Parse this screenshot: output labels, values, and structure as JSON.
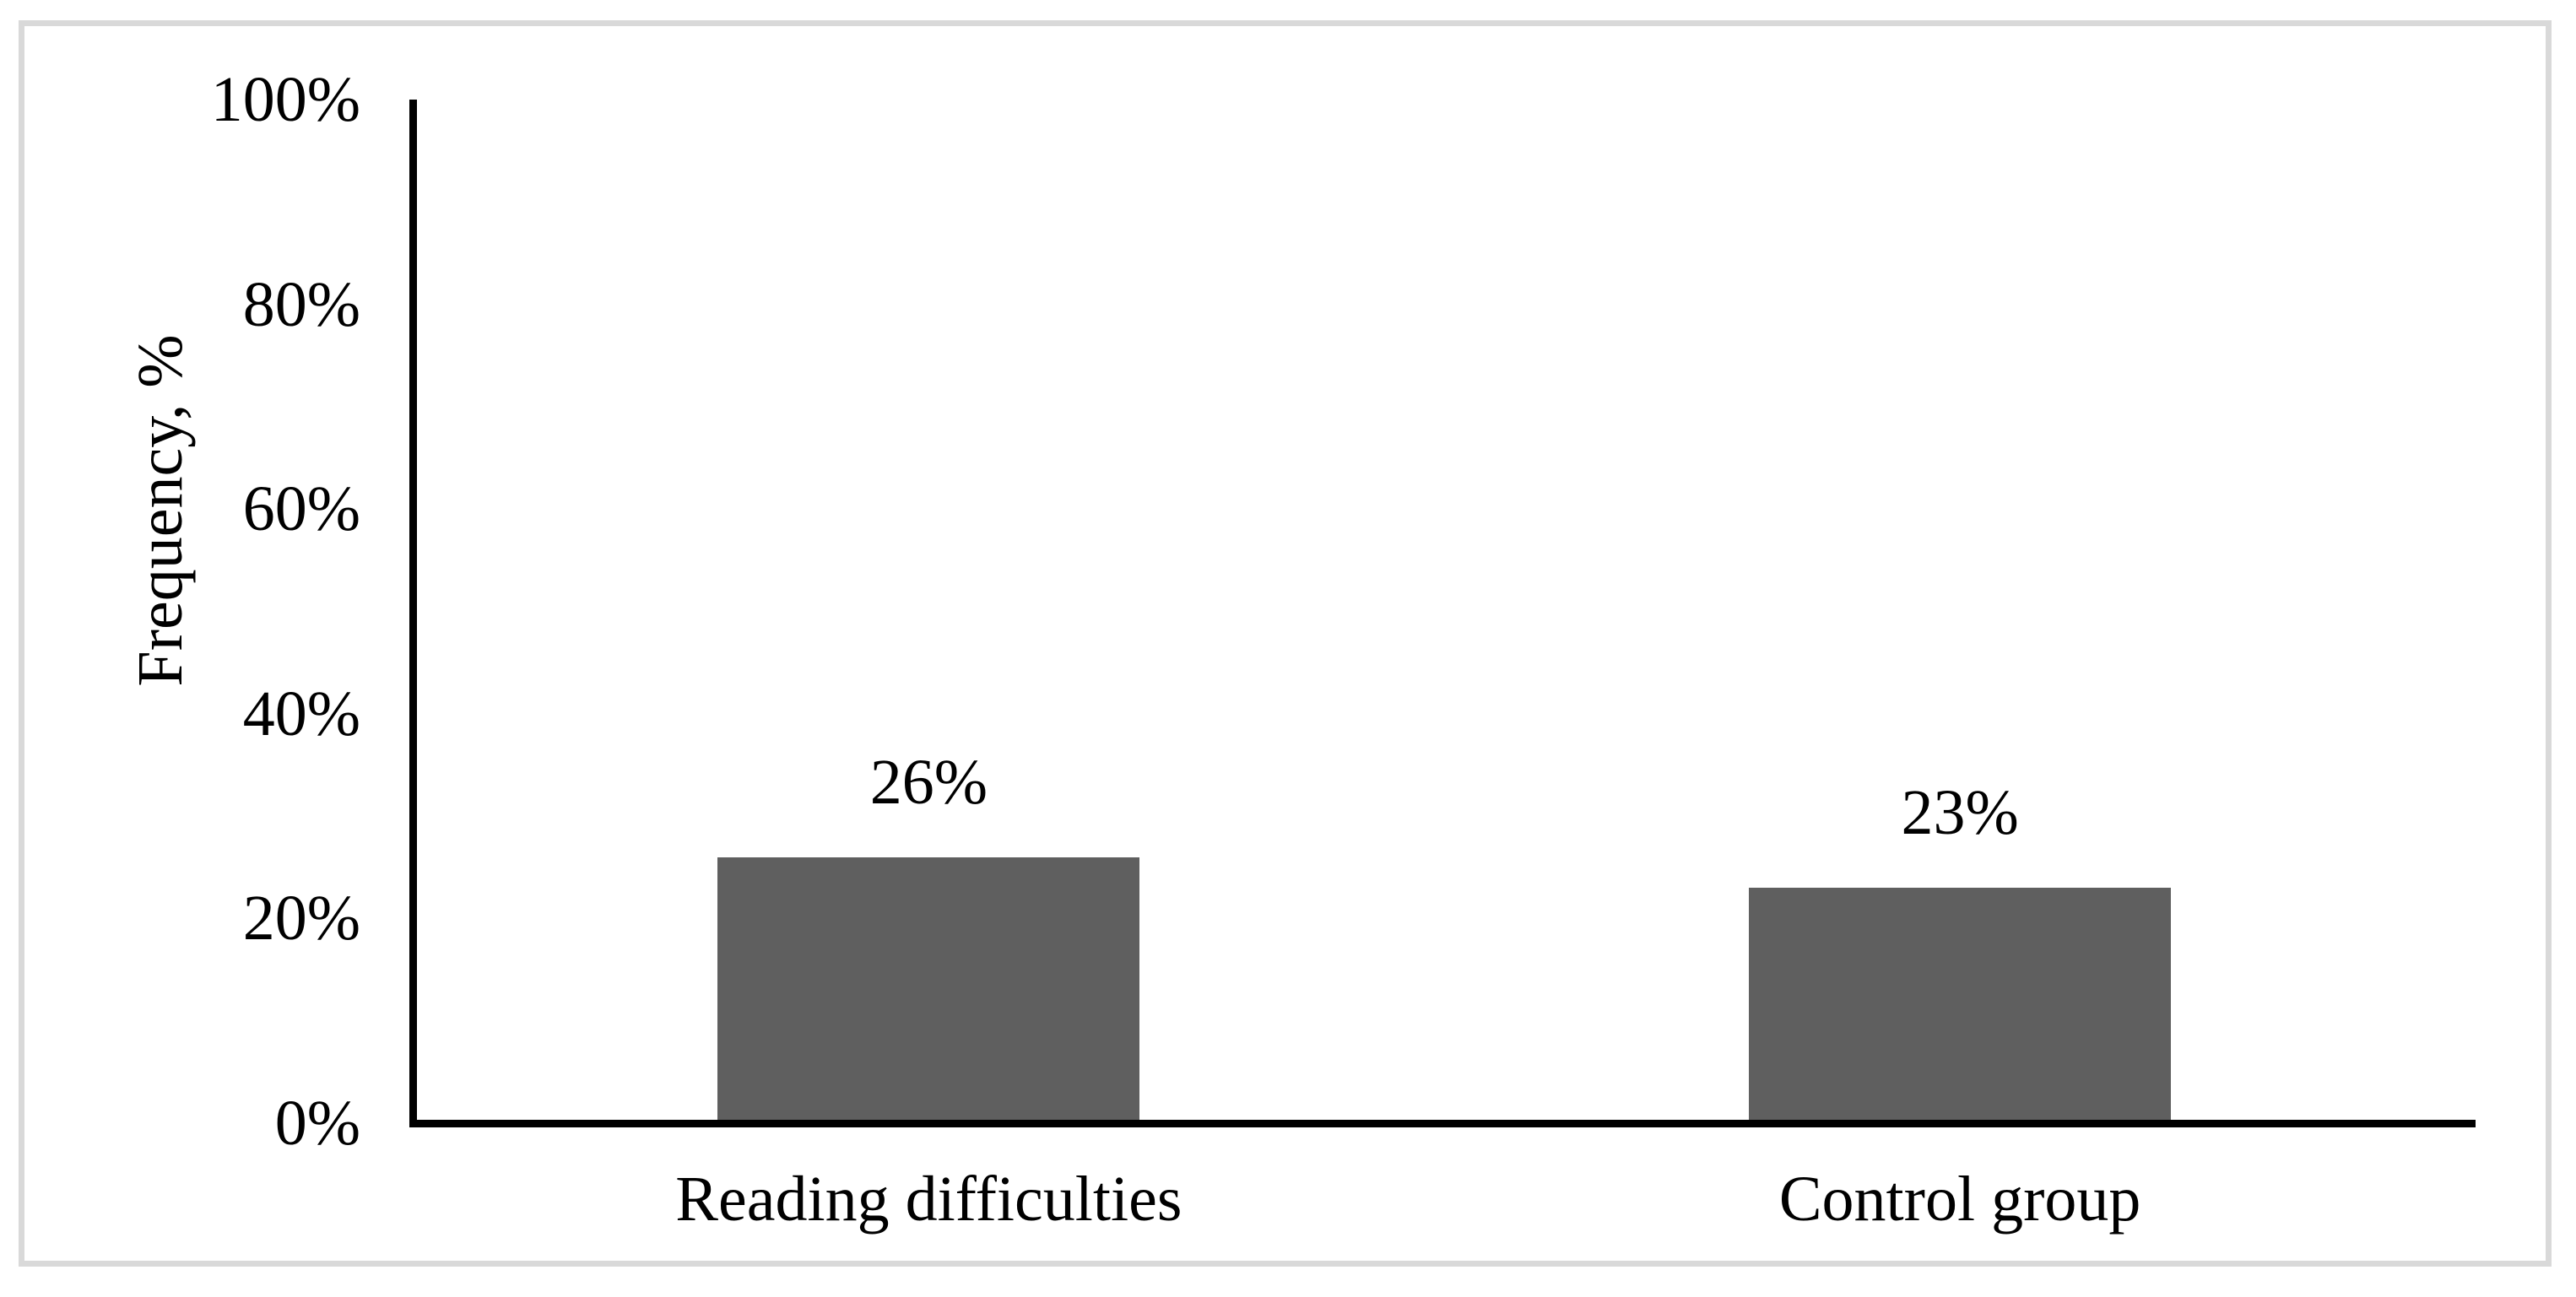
{
  "chart_data": {
    "type": "bar",
    "title": "",
    "categories": [
      "Reading difficulties",
      "Control group"
    ],
    "values": [
      26,
      23
    ],
    "data_labels": [
      "26%",
      "23%"
    ],
    "xlabel": "",
    "ylabel": "Frequency, %",
    "ylim": [
      0,
      100
    ],
    "yticks": [
      0,
      20,
      40,
      60,
      80,
      100
    ],
    "ytick_labels": [
      "0%",
      "20%",
      "40%",
      "60%",
      "80%",
      "100%"
    ],
    "grid": false,
    "legend": false,
    "layout": {
      "legend_position": "none",
      "bar_orientation": "vertical"
    },
    "colors": {
      "bar": "#5F5F5F",
      "axis": "#000000",
      "text": "#000000",
      "frame_border": "#D9D9D9",
      "background": "#FFFFFF"
    }
  }
}
